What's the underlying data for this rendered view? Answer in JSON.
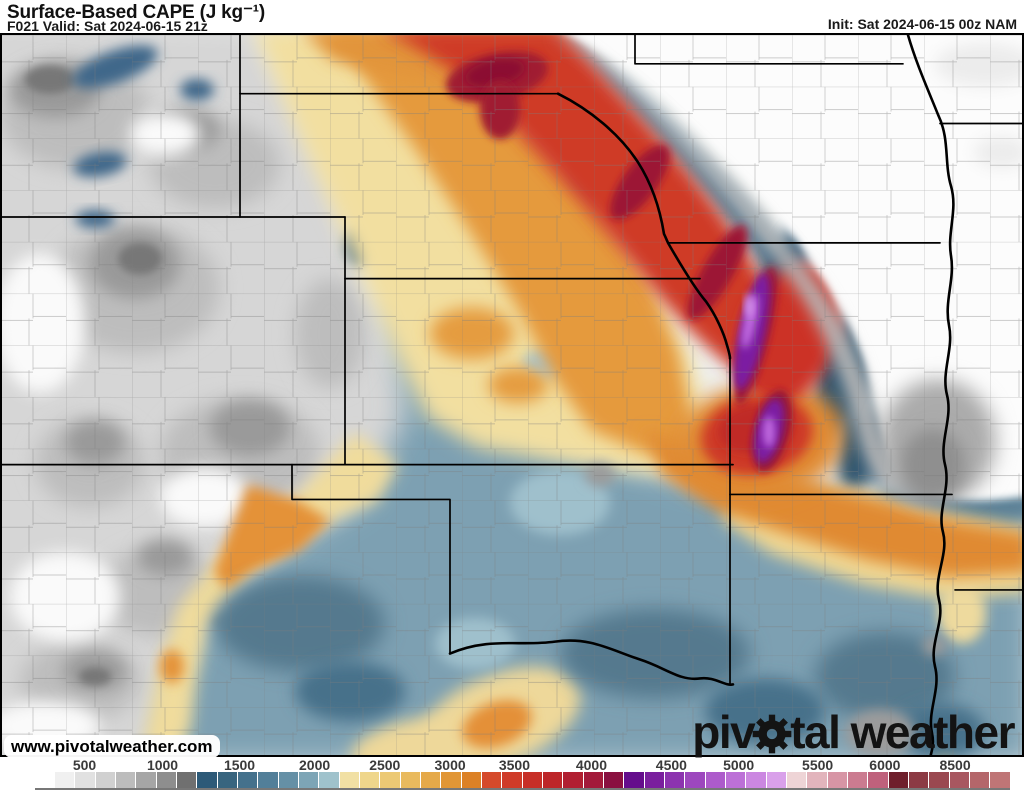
{
  "header": {
    "title": "Surface-Based CAPE (J kg⁻¹)",
    "subtitle": "F021 Valid: Sat 2024-06-15 21z",
    "init_label": "Init: Sat 2024-06-15 00z NAM"
  },
  "map": {
    "watermark": "www.pivotalweather.com",
    "logo_part1": "piv",
    "logo_part2": "tal weather",
    "region": "Central United States (NE, KS, OK, MO, IA, SD, CO, WY, AR, TX, IL, MN, WI)"
  },
  "colorbar": {
    "units": "J kg⁻¹",
    "ticks": [
      {
        "label": "500",
        "pos": 5.1
      },
      {
        "label": "1000",
        "pos": 13.1
      },
      {
        "label": "1500",
        "pos": 21.0
      },
      {
        "label": "2000",
        "pos": 28.7
      },
      {
        "label": "2500",
        "pos": 35.9
      },
      {
        "label": "3000",
        "pos": 42.6
      },
      {
        "label": "3500",
        "pos": 49.2
      },
      {
        "label": "4000",
        "pos": 57.1
      },
      {
        "label": "4500",
        "pos": 65.3
      },
      {
        "label": "5000",
        "pos": 72.2
      },
      {
        "label": "5500",
        "pos": 80.3
      },
      {
        "label": "6000",
        "pos": 87.2
      },
      {
        "label": "8500",
        "pos": 94.4
      }
    ],
    "segments": [
      "#ffffff",
      "#f0f0f0",
      "#e1e1e1",
      "#d0d0d0",
      "#bcbcbc",
      "#a6a6a6",
      "#8e8e8e",
      "#707070",
      "#2d5a78",
      "#38657f",
      "#44718c",
      "#527f99",
      "#6590a6",
      "#7da5b6",
      "#9fc2cc",
      "#f1e0a4",
      "#efd68b",
      "#ecc974",
      "#e9ba5e",
      "#e5a949",
      "#e19636",
      "#dc8126",
      "#d54a2b",
      "#cf3b28",
      "#c72f27",
      "#bd2629",
      "#b11f31",
      "#a31a3a",
      "#8a1040",
      "#650d8c",
      "#7a1f9e",
      "#8c33af",
      "#9d47be",
      "#ad5bcb",
      "#bc70d7",
      "#cb87e1",
      "#d9a0ea",
      "#eed4d6",
      "#e2b4bc",
      "#d795a5",
      "#cb7b90",
      "#bf617c",
      "#6f1f2c",
      "#8c3a44",
      "#9a4850",
      "#a85760",
      "#b4666a",
      "#bf7576"
    ]
  }
}
